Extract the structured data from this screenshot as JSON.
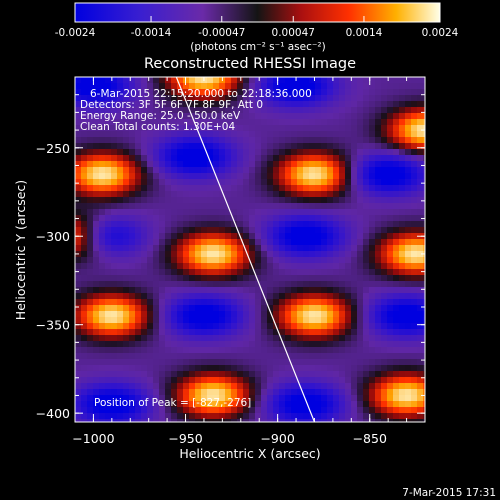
{
  "colorbar": {
    "tick_labels": [
      "-0.0024",
      "-0.0014",
      "-0.00047",
      "0.00047",
      "0.0014",
      "0.0024"
    ],
    "tick_values": [
      -0.0024,
      -0.0014,
      -0.00047,
      0.00047,
      0.0014,
      0.0024
    ],
    "range": [
      -0.0024,
      0.0024
    ],
    "units_label": "(photons cm⁻² s⁻¹ asec⁻²)"
  },
  "chart_data": {
    "type": "heatmap",
    "title": "Reconstructed RHESSI Image",
    "xlabel": "Heliocentric X (arcsec)",
    "ylabel": "Heliocentric Y (arcsec)",
    "xlim": [
      -1010,
      -820
    ],
    "ylim": [
      -405,
      -210
    ],
    "x_ticks": [
      -1000,
      -950,
      -900,
      -850
    ],
    "y_ticks": [
      -250,
      -300,
      -350,
      -400
    ],
    "x_tick_labels": [
      "−1000",
      "−950",
      "−900",
      "−850"
    ],
    "y_tick_labels": [
      "−250",
      "−300",
      "−350",
      "−400"
    ],
    "info_lines": [
      "6-Mar-2015 22:15:20.000 to 22:18:36.000",
      "Detectors: 3F 5F 6F 7F 8F 9F, Att 0",
      "Energy Range: 25.0 - 50.0 keV",
      "Clean    Total counts: 1.30E+04"
    ],
    "peak_label": "Position of Peak = [-827,-276]",
    "peak_position": [
      -827,
      -276
    ],
    "limb_line": {
      "points": [
        [
          -955,
          -210
        ],
        [
          -880,
          -405
        ]
      ]
    }
  },
  "timestamp": "7-Mar-2015 17:31"
}
